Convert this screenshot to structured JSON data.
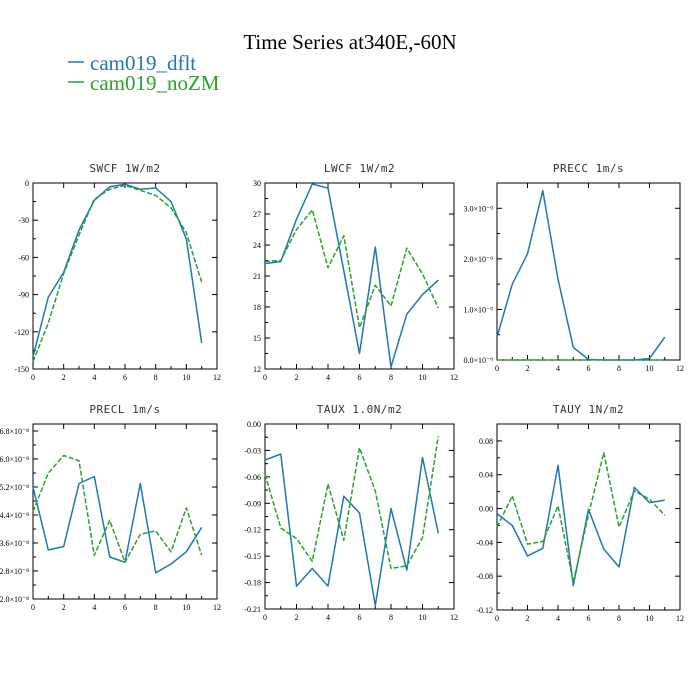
{
  "figure_title": "Time Series at340E,-60N",
  "legend": [
    {
      "label": "cam019_dflt",
      "color": "#1f77b4",
      "dash": ""
    },
    {
      "label": "cam019_noZM",
      "color": "#2ca02c",
      "dash": "5,2"
    }
  ],
  "chart_data": [
    {
      "type": "line",
      "title": "SWCF   1W/m2",
      "x": [
        0,
        1,
        2,
        3,
        4,
        5,
        6,
        7,
        8,
        9,
        10,
        11
      ],
      "xlim": [
        0,
        12
      ],
      "xticks": [
        0,
        2,
        4,
        6,
        8,
        10,
        12
      ],
      "ylim": [
        -150,
        0
      ],
      "yticks": [
        -150,
        -120,
        -90,
        -60,
        -30,
        0
      ],
      "ytick_labels": [
        "-150",
        "-120",
        "-90",
        "-60",
        "-30",
        "0"
      ],
      "series": [
        {
          "name": "cam019_dflt",
          "values": [
            -140,
            -92,
            -72,
            -38,
            -14,
            -3,
            -1,
            -5,
            -4,
            -15,
            -45,
            -129
          ]
        },
        {
          "name": "cam019_noZM",
          "values": [
            -144,
            -113,
            -73,
            -42,
            -13,
            -5,
            -2,
            -6,
            -10,
            -20,
            -40,
            -80
          ]
        }
      ]
    },
    {
      "type": "line",
      "title": "LWCF   1W/m2",
      "x": [
        0,
        1,
        2,
        3,
        4,
        5,
        6,
        7,
        8,
        9,
        10,
        11
      ],
      "xlim": [
        0,
        12
      ],
      "xticks": [
        0,
        2,
        4,
        6,
        8,
        10,
        12
      ],
      "ylim": [
        12,
        30
      ],
      "yticks": [
        12,
        15,
        18,
        21,
        24,
        27,
        30
      ],
      "ytick_labels": [
        "12",
        "15",
        "18",
        "21",
        "24",
        "27",
        "30"
      ],
      "series": [
        {
          "name": "cam019_dflt",
          "values": [
            22.2,
            22.4,
            26.5,
            29.9,
            29.5,
            21.5,
            13.5,
            23.8,
            12.2,
            17.3,
            19.2,
            20.6
          ]
        },
        {
          "name": "cam019_noZM",
          "values": [
            22.4,
            22.5,
            25.5,
            27.4,
            21.8,
            24.9,
            16.0,
            20.1,
            18.1,
            23.7,
            21.2,
            17.9
          ]
        }
      ]
    },
    {
      "type": "line",
      "title": "PRECC   1m/s",
      "x": [
        0,
        1,
        2,
        3,
        4,
        5,
        6,
        7,
        8,
        9,
        10,
        11
      ],
      "xlim": [
        0,
        12
      ],
      "xticks": [
        0,
        2,
        4,
        6,
        8,
        10,
        12
      ],
      "ylim": [
        0,
        3.5e-09
      ],
      "yticks": [
        0,
        1e-09,
        2e-09,
        3e-09
      ],
      "ytick_labels": [
        "0.0×10⁻⁹",
        "1.0×10⁻⁹",
        "2.0×10⁻⁹",
        "3.0×10⁻⁹"
      ],
      "series": [
        {
          "name": "cam019_dflt",
          "values": [
            4.5e-10,
            1.5e-09,
            2.1e-09,
            3.35e-09,
            1.6e-09,
            2.5e-10,
            1e-11,
            0.0,
            0.0,
            0.0,
            3e-11,
            4.5e-10
          ]
        },
        {
          "name": "cam019_noZM",
          "values": [
            0,
            0,
            0,
            0,
            0,
            0,
            0,
            0,
            0,
            0,
            0,
            0
          ]
        }
      ]
    },
    {
      "type": "line",
      "title": "PRECL   1m/s",
      "x": [
        0,
        1,
        2,
        3,
        4,
        5,
        6,
        7,
        8,
        9,
        10,
        11
      ],
      "xlim": [
        0,
        12
      ],
      "xticks": [
        0,
        2,
        4,
        6,
        8,
        10,
        12
      ],
      "ylim": [
        2e-08,
        7e-08
      ],
      "yticks": [
        2e-08,
        2.8e-08,
        3.6e-08,
        4.4e-08,
        5.2e-08,
        6e-08,
        6.8e-08
      ],
      "ytick_labels": [
        "2.0×10⁻⁸",
        "2.8×10⁻⁸",
        "3.6×10⁻⁸",
        "4.4×10⁻⁸",
        "5.2×10⁻⁸",
        "6.0×10⁻⁸",
        "6.8×10⁻⁸"
      ],
      "series": [
        {
          "name": "cam019_dflt",
          "values": [
            5.2e-08,
            3.4e-08,
            3.5e-08,
            5.3e-08,
            5.5e-08,
            3.2e-08,
            3.05e-08,
            5.3e-08,
            2.75e-08,
            3e-08,
            3.35e-08,
            4.05e-08
          ]
        },
        {
          "name": "cam019_noZM",
          "values": [
            4.5e-08,
            5.6e-08,
            6.1e-08,
            5.95e-08,
            3.25e-08,
            4.25e-08,
            3.05e-08,
            3.85e-08,
            3.95e-08,
            3.35e-08,
            4.6e-08,
            3.25e-08
          ]
        }
      ]
    },
    {
      "type": "line",
      "title": "TAUX   1.0N/m2",
      "x": [
        0,
        1,
        2,
        3,
        4,
        5,
        6,
        7,
        8,
        9,
        10,
        11
      ],
      "xlim": [
        0,
        12
      ],
      "xticks": [
        0,
        2,
        4,
        6,
        8,
        10,
        12
      ],
      "ylim": [
        -0.21,
        0
      ],
      "yticks": [
        -0.21,
        -0.18,
        -0.15,
        -0.12,
        -0.09,
        -0.06,
        -0.03,
        0
      ],
      "ytick_labels": [
        "-0.21",
        "-0.18",
        "-0.15",
        "-0.12",
        "-0.09",
        "-0.06",
        "-0.03",
        "0.00"
      ],
      "series": [
        {
          "name": "cam019_dflt",
          "values": [
            -0.041,
            -0.034,
            -0.184,
            -0.164,
            -0.184,
            -0.082,
            -0.101,
            -0.206,
            -0.096,
            -0.166,
            -0.038,
            -0.124
          ]
        },
        {
          "name": "cam019_noZM",
          "values": [
            -0.057,
            -0.118,
            -0.13,
            -0.156,
            -0.068,
            -0.132,
            -0.027,
            -0.076,
            -0.164,
            -0.161,
            -0.129,
            -0.014
          ]
        }
      ]
    },
    {
      "type": "line",
      "title": "TAUY   1N/m2",
      "x": [
        0,
        1,
        2,
        3,
        4,
        5,
        6,
        7,
        8,
        9,
        10,
        11
      ],
      "xlim": [
        0,
        12
      ],
      "xticks": [
        0,
        2,
        4,
        6,
        8,
        10,
        12
      ],
      "ylim": [
        -0.12,
        0.1
      ],
      "yticks": [
        -0.12,
        -0.08,
        -0.04,
        0,
        0.04,
        0.08
      ],
      "ytick_labels": [
        "-0.12",
        "-0.08",
        "-0.04",
        "0.00",
        "0.04",
        "0.08"
      ],
      "series": [
        {
          "name": "cam019_dflt",
          "values": [
            -0.006,
            -0.02,
            -0.056,
            -0.047,
            0.051,
            -0.091,
            -0.001,
            -0.048,
            -0.069,
            0.025,
            0.007,
            0.01
          ]
        },
        {
          "name": "cam019_noZM",
          "values": [
            -0.022,
            0.015,
            -0.042,
            -0.039,
            0.003,
            -0.087,
            -0.007,
            0.066,
            -0.022,
            0.021,
            0.011,
            -0.008
          ]
        }
      ]
    }
  ]
}
